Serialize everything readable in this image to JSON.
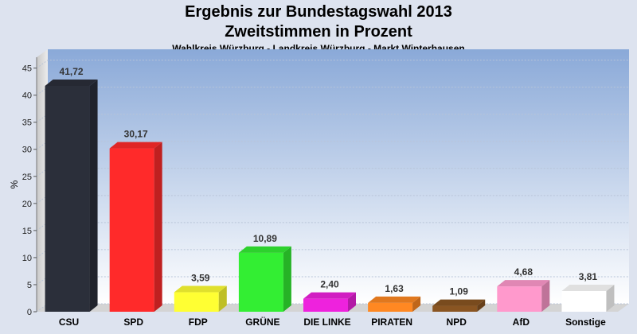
{
  "header": {
    "title_line1": "Ergebnis zur Bundestagswahl 2013",
    "title_line2": "Zweitstimmen in Prozent",
    "subtitle": "Wahlkreis Würzburg - Landkreis Würzburg - Markt Winterhausen"
  },
  "chart_data": {
    "type": "bar",
    "title": "Ergebnis zur Bundestagswahl 2013",
    "subtitle": "Zweitstimmen in Prozent",
    "xlabel": "",
    "ylabel": "%",
    "ylim": [
      0,
      47
    ],
    "yticks": [
      0,
      5,
      10,
      15,
      20,
      25,
      30,
      35,
      40,
      45
    ],
    "grid": true,
    "legend": "none",
    "categories": [
      "CSU",
      "SPD",
      "FDP",
      "GRÜNE",
      "DIE LINKE",
      "PIRATEN",
      "NPD",
      "AfD",
      "Sonstige"
    ],
    "values": [
      41.72,
      30.17,
      3.59,
      10.89,
      2.4,
      1.63,
      1.09,
      4.68,
      3.81
    ],
    "value_labels": [
      "41,72",
      "30,17",
      "3,59",
      "10,89",
      "2,40",
      "1,63",
      "1,09",
      "4,68",
      "3,81"
    ],
    "colors": [
      "#2b2f3a",
      "#ff2a2a",
      "#ffff33",
      "#33ee33",
      "#ee22dd",
      "#ff8822",
      "#8a5522",
      "#ff99cc",
      "#ffffff"
    ]
  }
}
